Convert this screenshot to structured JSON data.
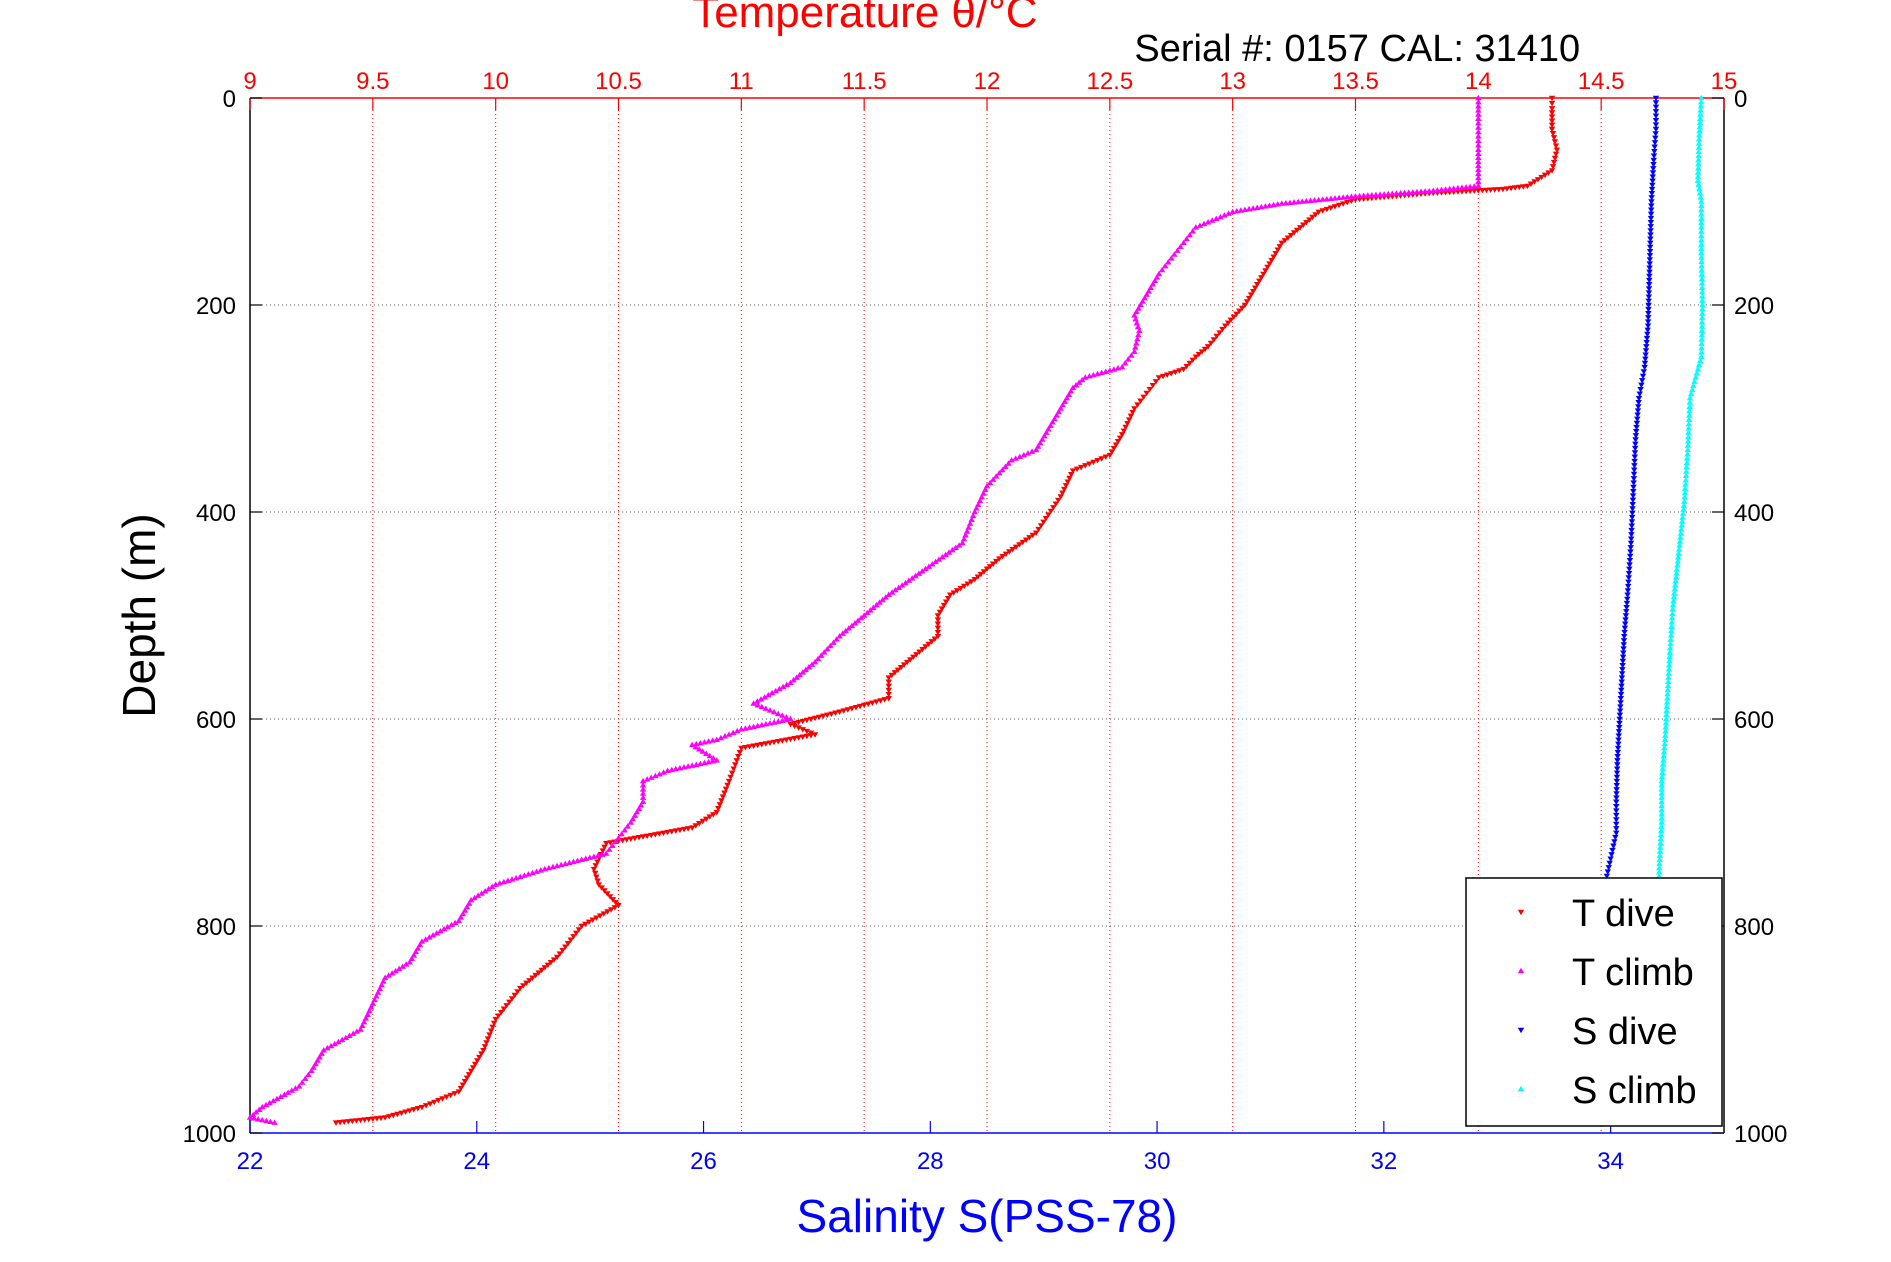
{
  "top_title": "Temperature θ/°C",
  "annotation": "Serial #: 0157  CAL: 31410",
  "colors": {
    "temperature_axis": "#ff0000",
    "salinity_axis": "#0000ff",
    "depth_axis": "#000000",
    "t_dive": "#ff0000",
    "t_climb": "#ff00ff",
    "s_dive": "#0000ff",
    "s_climb": "#00ffff"
  },
  "chart_data": {
    "type": "scatter",
    "title": "Temperature θ/°C",
    "ylabel": "Depth (m)",
    "xlabel_bottom": "Salinity S(PSS-78)",
    "xlabel_top": "Temperature θ/°C",
    "ylim": [
      0,
      1000
    ],
    "y_reversed": true,
    "y_ticks": [
      0,
      200,
      400,
      600,
      800,
      1000
    ],
    "temperature_axis": {
      "range": [
        9,
        15
      ],
      "ticks": [
        "9",
        "9.5",
        "10",
        "10.5",
        "11",
        "11.5",
        "12",
        "12.5",
        "13",
        "13.5",
        "14",
        "14.5",
        "15"
      ]
    },
    "salinity_axis": {
      "range": [
        22,
        35
      ],
      "ticks": [
        "22",
        "24",
        "26",
        "28",
        "30",
        "32",
        "34"
      ]
    },
    "grid": true,
    "legend_position": "bottom-right",
    "series": [
      {
        "name": "T dive",
        "axis": "temperature",
        "marker": "triangle-down",
        "points": [
          [
            14.3,
            0
          ],
          [
            14.3,
            10
          ],
          [
            14.3,
            30
          ],
          [
            14.32,
            50
          ],
          [
            14.3,
            70
          ],
          [
            14.2,
            85
          ],
          [
            14.1,
            88
          ],
          [
            13.8,
            92
          ],
          [
            13.5,
            98
          ],
          [
            13.35,
            110
          ],
          [
            13.2,
            140
          ],
          [
            13.15,
            160
          ],
          [
            13.1,
            180
          ],
          [
            13.05,
            200
          ],
          [
            12.97,
            220
          ],
          [
            12.9,
            240
          ],
          [
            12.85,
            250
          ],
          [
            12.8,
            262
          ],
          [
            12.7,
            270
          ],
          [
            12.65,
            285
          ],
          [
            12.6,
            300
          ],
          [
            12.55,
            325
          ],
          [
            12.5,
            345
          ],
          [
            12.35,
            360
          ],
          [
            12.3,
            385
          ],
          [
            12.2,
            420
          ],
          [
            12.05,
            445
          ],
          [
            11.95,
            465
          ],
          [
            11.85,
            480
          ],
          [
            11.8,
            500
          ],
          [
            11.8,
            520
          ],
          [
            11.7,
            540
          ],
          [
            11.6,
            560
          ],
          [
            11.6,
            580
          ],
          [
            11.4,
            593
          ],
          [
            11.2,
            605
          ],
          [
            11.3,
            615
          ],
          [
            11.0,
            628
          ],
          [
            10.95,
            660
          ],
          [
            10.9,
            690
          ],
          [
            10.8,
            705
          ],
          [
            10.45,
            720
          ],
          [
            10.4,
            745
          ],
          [
            10.42,
            760
          ],
          [
            10.5,
            780
          ],
          [
            10.35,
            800
          ],
          [
            10.25,
            830
          ],
          [
            10.1,
            860
          ],
          [
            10.0,
            890
          ],
          [
            9.95,
            920
          ],
          [
            9.9,
            940
          ],
          [
            9.85,
            960
          ],
          [
            9.7,
            975
          ],
          [
            9.55,
            985
          ],
          [
            9.35,
            990
          ]
        ]
      },
      {
        "name": "T climb",
        "axis": "temperature",
        "marker": "triangle-up",
        "points": [
          [
            14.0,
            0
          ],
          [
            14.0,
            20
          ],
          [
            14.0,
            50
          ],
          [
            14.0,
            85
          ],
          [
            13.8,
            90
          ],
          [
            13.5,
            95
          ],
          [
            13.2,
            102
          ],
          [
            13.0,
            110
          ],
          [
            12.85,
            125
          ],
          [
            12.8,
            140
          ],
          [
            12.75,
            155
          ],
          [
            12.7,
            170
          ],
          [
            12.65,
            190
          ],
          [
            12.6,
            210
          ],
          [
            12.62,
            225
          ],
          [
            12.6,
            245
          ],
          [
            12.55,
            260
          ],
          [
            12.4,
            270
          ],
          [
            12.35,
            280
          ],
          [
            12.3,
            300
          ],
          [
            12.25,
            320
          ],
          [
            12.2,
            340
          ],
          [
            12.1,
            350
          ],
          [
            12.0,
            375
          ],
          [
            11.95,
            400
          ],
          [
            11.9,
            430
          ],
          [
            11.75,
            455
          ],
          [
            11.6,
            480
          ],
          [
            11.5,
            500
          ],
          [
            11.4,
            520
          ],
          [
            11.3,
            545
          ],
          [
            11.2,
            565
          ],
          [
            11.05,
            585
          ],
          [
            11.2,
            600
          ],
          [
            11.0,
            610
          ],
          [
            10.9,
            620
          ],
          [
            10.8,
            625
          ],
          [
            10.9,
            640
          ],
          [
            10.7,
            650
          ],
          [
            10.6,
            660
          ],
          [
            10.6,
            680
          ],
          [
            10.55,
            700
          ],
          [
            10.5,
            715
          ],
          [
            10.45,
            730
          ],
          [
            10.2,
            745
          ],
          [
            10.0,
            760
          ],
          [
            9.9,
            775
          ],
          [
            9.85,
            795
          ],
          [
            9.7,
            815
          ],
          [
            9.65,
            835
          ],
          [
            9.55,
            850
          ],
          [
            9.5,
            875
          ],
          [
            9.45,
            900
          ],
          [
            9.3,
            920
          ],
          [
            9.25,
            940
          ],
          [
            9.2,
            955
          ],
          [
            9.05,
            975
          ],
          [
            9.0,
            985
          ],
          [
            9.1,
            990
          ]
        ]
      },
      {
        "name": "S dive",
        "axis": "salinity",
        "marker": "triangle-down",
        "points": [
          [
            34.4,
            0
          ],
          [
            34.4,
            30
          ],
          [
            34.38,
            60
          ],
          [
            34.36,
            100
          ],
          [
            34.35,
            140
          ],
          [
            34.34,
            180
          ],
          [
            34.33,
            220
          ],
          [
            34.3,
            260
          ],
          [
            34.25,
            290
          ],
          [
            34.22,
            330
          ],
          [
            34.2,
            380
          ],
          [
            34.18,
            430
          ],
          [
            34.15,
            480
          ],
          [
            34.12,
            520
          ],
          [
            34.1,
            560
          ],
          [
            34.08,
            600
          ],
          [
            34.06,
            640
          ],
          [
            34.05,
            680
          ],
          [
            34.05,
            710
          ],
          [
            34.0,
            735
          ],
          [
            33.95,
            760
          ],
          [
            33.92,
            800
          ],
          [
            33.92,
            850
          ],
          [
            33.9,
            900
          ],
          [
            33.9,
            950
          ],
          [
            33.92,
            990
          ]
        ]
      },
      {
        "name": "S climb",
        "axis": "salinity",
        "marker": "triangle-up",
        "points": [
          [
            34.8,
            0
          ],
          [
            34.78,
            40
          ],
          [
            34.77,
            80
          ],
          [
            34.8,
            100
          ],
          [
            34.8,
            150
          ],
          [
            34.81,
            200
          ],
          [
            34.8,
            250
          ],
          [
            34.7,
            290
          ],
          [
            34.68,
            340
          ],
          [
            34.65,
            390
          ],
          [
            34.6,
            440
          ],
          [
            34.55,
            490
          ],
          [
            34.52,
            540
          ],
          [
            34.5,
            580
          ],
          [
            34.48,
            620
          ],
          [
            34.45,
            660
          ],
          [
            34.45,
            700
          ],
          [
            34.43,
            740
          ],
          [
            34.42,
            780
          ],
          [
            34.4,
            830
          ],
          [
            34.35,
            880
          ],
          [
            34.3,
            930
          ],
          [
            34.3,
            970
          ],
          [
            34.3,
            990
          ]
        ]
      }
    ]
  }
}
